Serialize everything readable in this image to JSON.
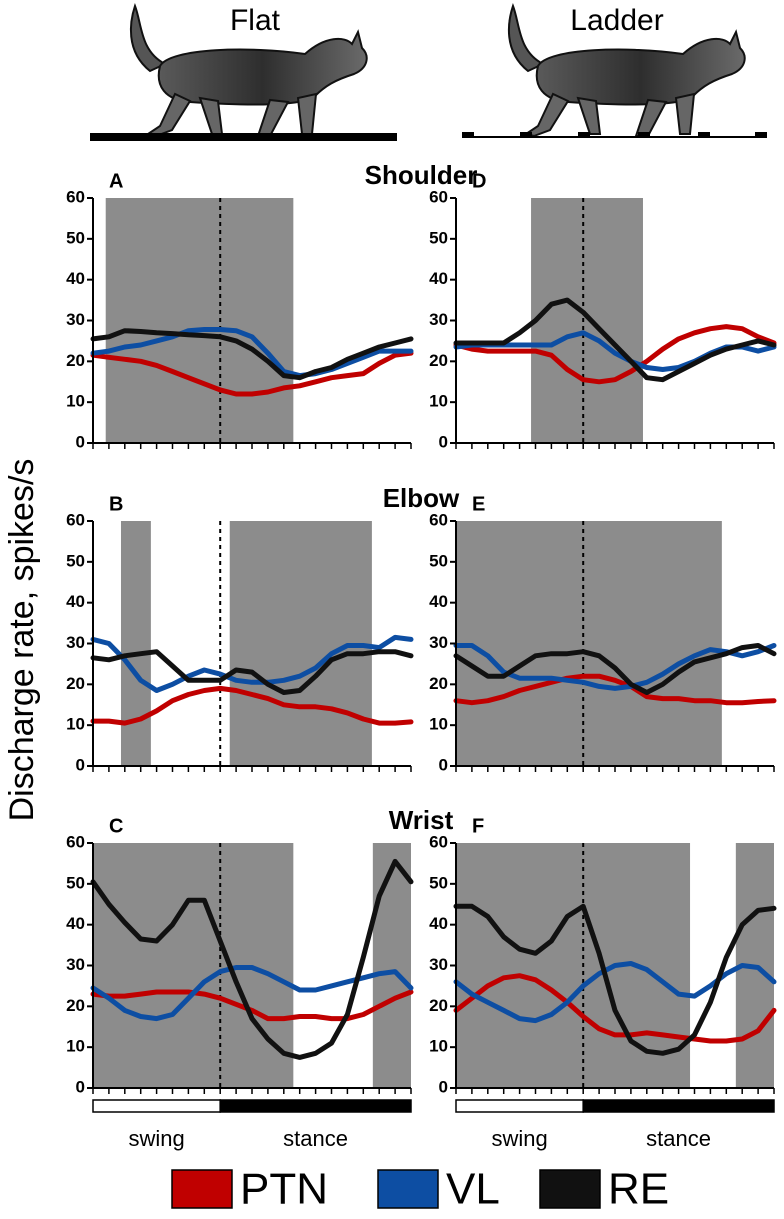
{
  "conditions": [
    "Flat",
    "Ladder"
  ],
  "ylabel": "Discharge rate, spikes/s",
  "phase": {
    "labels": [
      "swing",
      "stance"
    ],
    "boundary": 0.4
  },
  "legend": [
    {
      "name": "PTN",
      "color": "#c00000"
    },
    {
      "name": "VL",
      "color": "#0d4ea3"
    },
    {
      "name": "RE",
      "color": "#111111"
    }
  ],
  "chart_data": [
    {
      "type": "line",
      "label": "A",
      "title": "Shoulder",
      "xlim": [
        0,
        1
      ],
      "ylim": [
        0,
        60
      ],
      "yticks": [
        0,
        10,
        20,
        30,
        40,
        50,
        60
      ],
      "shaded": [
        [
          0.04,
          0.63
        ]
      ],
      "series": [
        {
          "values": [
            21.5,
            21,
            20.5,
            20,
            19,
            17.5,
            16,
            14.5,
            13,
            12,
            12,
            12.5,
            13.5,
            14,
            15,
            16,
            16.5,
            17,
            19.5,
            21.5,
            22
          ]
        },
        {
          "values": [
            22,
            22.5,
            23.5,
            24,
            25,
            26,
            27.5,
            27.8,
            27.8,
            27.5,
            26,
            22,
            17.5,
            16.5,
            17,
            18,
            19.5,
            21,
            22.5,
            22.5,
            22.5
          ]
        },
        {
          "values": [
            25.5,
            26,
            27.5,
            27.3,
            27,
            26.8,
            26.5,
            26.3,
            26,
            25,
            23,
            20,
            16.5,
            16,
            17.5,
            18.5,
            20.5,
            22,
            23.5,
            24.5,
            25.5
          ]
        }
      ]
    },
    {
      "type": "line",
      "label": "D",
      "xlim": [
        0,
        1
      ],
      "ylim": [
        0,
        60
      ],
      "yticks": [
        0,
        10,
        20,
        30,
        40,
        50,
        60
      ],
      "shaded": [
        [
          0.236,
          0.588
        ]
      ],
      "series": [
        {
          "values": [
            24,
            23,
            22.5,
            22.5,
            22.5,
            22.5,
            21.5,
            18,
            15.5,
            15,
            15.5,
            17.5,
            20,
            23,
            25.5,
            27,
            28,
            28.5,
            28,
            26,
            24.5
          ]
        },
        {
          "values": [
            23.5,
            24,
            24,
            24,
            24,
            24,
            24,
            26,
            27,
            25,
            22,
            20,
            18.5,
            18,
            18.5,
            20,
            22,
            23.5,
            23.5,
            22.5,
            23.5
          ]
        },
        {
          "values": [
            24.5,
            24.5,
            24.5,
            24.5,
            27,
            30,
            34,
            35,
            32,
            28,
            24,
            20,
            16,
            15.5,
            17.5,
            19.5,
            21.5,
            23,
            24,
            25,
            24
          ]
        }
      ]
    },
    {
      "type": "line",
      "label": "B",
      "title": "Elbow",
      "xlim": [
        0,
        1
      ],
      "ylim": [
        0,
        60
      ],
      "yticks": [
        0,
        10,
        20,
        30,
        40,
        50,
        60
      ],
      "shaded": [
        [
          0.088,
          0.182
        ],
        [
          0.43,
          0.877
        ]
      ],
      "series": [
        {
          "values": [
            11,
            11,
            10.5,
            11.5,
            13.5,
            16,
            17.5,
            18.5,
            19,
            18.5,
            17.5,
            16.5,
            15,
            14.5,
            14.5,
            14,
            13,
            11.5,
            10.5,
            10.5,
            10.8
          ]
        },
        {
          "values": [
            31,
            30,
            26,
            21,
            18.5,
            20,
            22,
            23.5,
            22.5,
            21,
            20.5,
            20.5,
            21,
            22,
            24,
            27.5,
            29.5,
            29.5,
            29,
            31.5,
            31
          ]
        },
        {
          "values": [
            26.5,
            26,
            27,
            27.5,
            28,
            24.5,
            21,
            21,
            21,
            23.5,
            23,
            20,
            18,
            18.5,
            22,
            26,
            27.5,
            27.5,
            28,
            28,
            27
          ]
        }
      ]
    },
    {
      "type": "line",
      "label": "E",
      "xlim": [
        0,
        1
      ],
      "ylim": [
        0,
        60
      ],
      "yticks": [
        0,
        10,
        20,
        30,
        40,
        50,
        60
      ],
      "shaded": [
        [
          0,
          0.836
        ]
      ],
      "series": [
        {
          "values": [
            16,
            15.5,
            16,
            17,
            18.5,
            19.5,
            20.5,
            21.5,
            22,
            22,
            21,
            19.5,
            17,
            16.5,
            16.5,
            16,
            16,
            15.5,
            15.5,
            15.8,
            16
          ]
        },
        {
          "values": [
            29.5,
            29.5,
            27,
            23,
            21.5,
            21.5,
            21.5,
            21,
            20.5,
            19.5,
            19,
            19.5,
            20.5,
            22.5,
            25,
            27,
            28.5,
            28,
            27,
            28,
            29.5
          ]
        },
        {
          "values": [
            27,
            24.5,
            22,
            22,
            24.5,
            27,
            27.5,
            27.5,
            28,
            27,
            24,
            20,
            18,
            20,
            23,
            25.5,
            26.5,
            27.5,
            29,
            29.5,
            27.5
          ]
        }
      ]
    },
    {
      "type": "line",
      "label": "C",
      "title": "Wrist",
      "xlim": [
        0,
        1
      ],
      "ylim": [
        0,
        60
      ],
      "yticks": [
        0,
        10,
        20,
        30,
        40,
        50,
        60
      ],
      "shaded": [
        [
          0,
          0.63
        ],
        [
          0.88,
          1
        ]
      ],
      "series": [
        {
          "values": [
            23,
            22.5,
            22.5,
            23,
            23.5,
            23.5,
            23.5,
            23,
            22,
            20.5,
            19,
            17,
            17,
            17.5,
            17.5,
            17,
            17,
            18,
            20,
            22,
            23.5
          ]
        },
        {
          "values": [
            24.5,
            22,
            19,
            17.5,
            17,
            18,
            22,
            26,
            28.5,
            29.5,
            29.5,
            28,
            26,
            24,
            24,
            25,
            26,
            27,
            28,
            28.5,
            24.5
          ]
        },
        {
          "values": [
            50.5,
            45,
            40.5,
            36.5,
            36,
            40,
            46,
            46,
            36,
            26,
            17,
            12,
            8.5,
            7.5,
            8.5,
            11,
            18,
            32,
            47,
            55.5,
            50.5
          ]
        }
      ]
    },
    {
      "type": "line",
      "label": "F",
      "xlim": [
        0,
        1
      ],
      "ylim": [
        0,
        60
      ],
      "yticks": [
        0,
        10,
        20,
        30,
        40,
        50,
        60
      ],
      "shaded": [
        [
          0,
          0.736
        ],
        [
          0.88,
          1
        ]
      ],
      "series": [
        {
          "values": [
            19,
            22,
            25,
            27,
            27.5,
            26.5,
            24,
            21,
            17.5,
            14.5,
            13,
            13,
            13.5,
            13,
            12.5,
            12,
            11.5,
            11.5,
            12,
            14,
            19
          ]
        },
        {
          "values": [
            26,
            23,
            21,
            19,
            17,
            16.5,
            18,
            21,
            25,
            28,
            30,
            30.5,
            29,
            26,
            23,
            22.5,
            25,
            28,
            30,
            29.5,
            26
          ]
        },
        {
          "values": [
            44.5,
            44.5,
            42,
            37,
            34,
            33,
            36,
            42,
            44.5,
            33,
            19,
            11.5,
            9,
            8.5,
            9.5,
            13,
            21,
            32,
            40,
            43.5,
            44
          ]
        }
      ]
    }
  ]
}
